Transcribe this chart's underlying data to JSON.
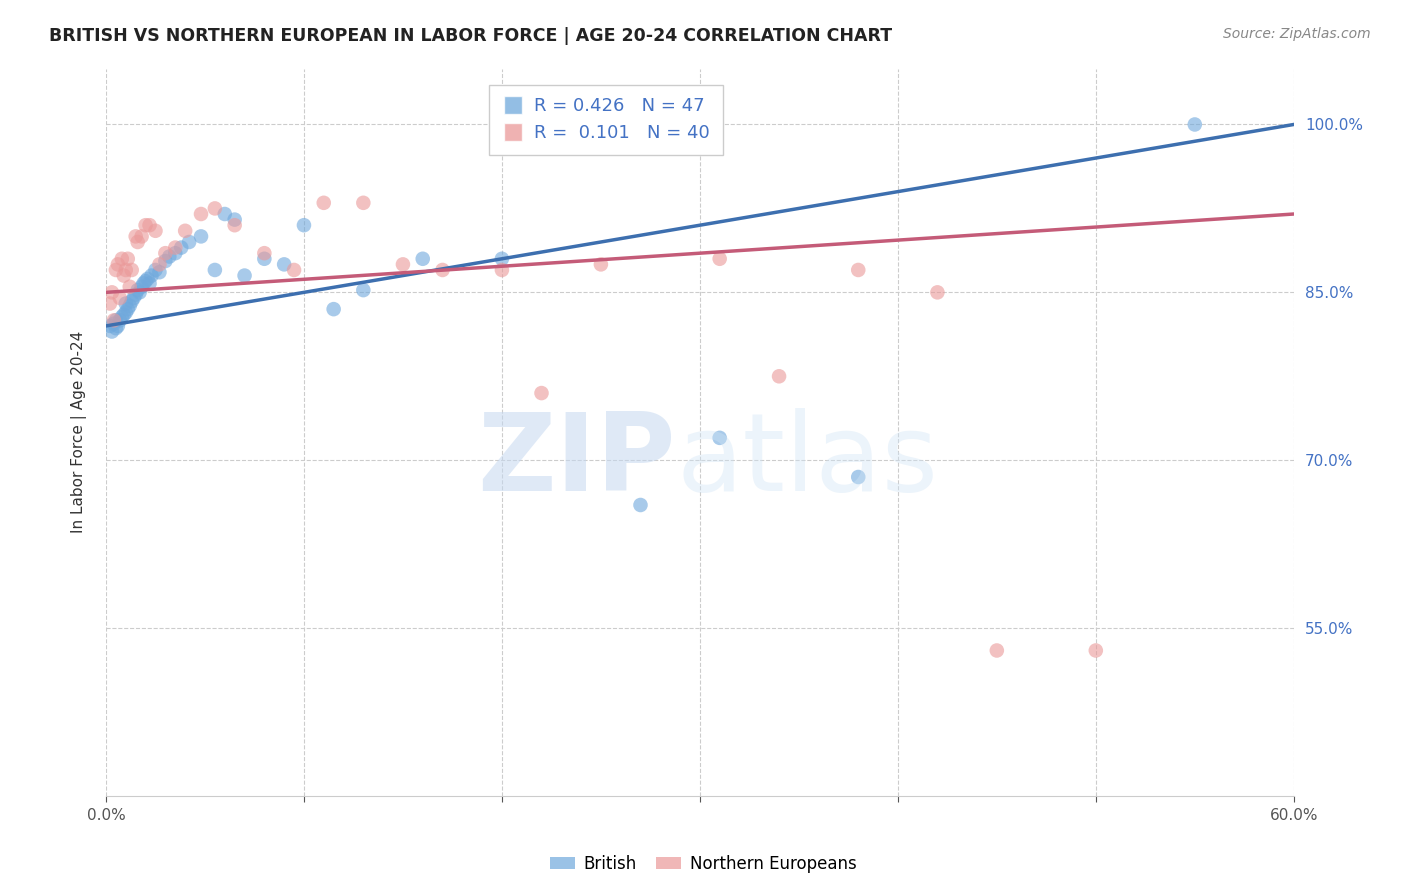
{
  "title": "BRITISH VS NORTHERN EUROPEAN IN LABOR FORCE | AGE 20-24 CORRELATION CHART",
  "source": "Source: ZipAtlas.com",
  "ylabel": "In Labor Force | Age 20-24",
  "xlim": [
    0.0,
    0.6
  ],
  "ylim": [
    0.4,
    1.05
  ],
  "xticks": [
    0.0,
    0.1,
    0.2,
    0.3,
    0.4,
    0.5,
    0.6
  ],
  "yticks": [
    0.55,
    0.7,
    0.85,
    1.0
  ],
  "british_R": 0.426,
  "british_N": 47,
  "northern_R": 0.101,
  "northern_N": 40,
  "british_color": "#6fa8dc",
  "northern_color": "#ea9999",
  "trendline_british_color": "#3d6faf",
  "trendline_northern_color": "#c45b78",
  "grid_color": "#cccccc",
  "background_color": "#ffffff",
  "british_x": [
    0.002,
    0.003,
    0.004,
    0.005,
    0.005,
    0.006,
    0.007,
    0.008,
    0.009,
    0.01,
    0.01,
    0.011,
    0.012,
    0.013,
    0.014,
    0.015,
    0.016,
    0.017,
    0.018,
    0.019,
    0.02,
    0.021,
    0.022,
    0.023,
    0.025,
    0.027,
    0.03,
    0.032,
    0.035,
    0.038,
    0.042,
    0.048,
    0.055,
    0.06,
    0.065,
    0.07,
    0.08,
    0.09,
    0.1,
    0.115,
    0.13,
    0.16,
    0.2,
    0.27,
    0.31,
    0.38,
    0.55
  ],
  "british_y": [
    0.82,
    0.815,
    0.822,
    0.825,
    0.818,
    0.82,
    0.825,
    0.828,
    0.83,
    0.832,
    0.84,
    0.835,
    0.838,
    0.842,
    0.845,
    0.848,
    0.852,
    0.85,
    0.855,
    0.858,
    0.86,
    0.862,
    0.858,
    0.865,
    0.87,
    0.868,
    0.878,
    0.882,
    0.885,
    0.89,
    0.895,
    0.9,
    0.87,
    0.92,
    0.915,
    0.865,
    0.88,
    0.875,
    0.91,
    0.835,
    0.852,
    0.88,
    0.88,
    0.66,
    0.72,
    0.685,
    1.0
  ],
  "northern_x": [
    0.002,
    0.003,
    0.004,
    0.005,
    0.006,
    0.007,
    0.008,
    0.009,
    0.01,
    0.011,
    0.012,
    0.013,
    0.015,
    0.016,
    0.018,
    0.02,
    0.022,
    0.025,
    0.027,
    0.03,
    0.035,
    0.04,
    0.048,
    0.055,
    0.065,
    0.08,
    0.095,
    0.11,
    0.13,
    0.15,
    0.17,
    0.2,
    0.22,
    0.25,
    0.31,
    0.34,
    0.38,
    0.42,
    0.45,
    0.5
  ],
  "northern_y": [
    0.84,
    0.85,
    0.825,
    0.87,
    0.875,
    0.845,
    0.88,
    0.865,
    0.87,
    0.88,
    0.855,
    0.87,
    0.9,
    0.895,
    0.9,
    0.91,
    0.91,
    0.905,
    0.875,
    0.885,
    0.89,
    0.905,
    0.92,
    0.925,
    0.91,
    0.885,
    0.87,
    0.93,
    0.93,
    0.875,
    0.87,
    0.87,
    0.76,
    0.875,
    0.88,
    0.775,
    0.87,
    0.85,
    0.53,
    0.53
  ],
  "trendline_british_x0": 0.0,
  "trendline_british_y0": 0.82,
  "trendline_british_x1": 0.6,
  "trendline_british_y1": 1.0,
  "trendline_northern_x0": 0.0,
  "trendline_northern_y0": 0.85,
  "trendline_northern_x1": 0.6,
  "trendline_northern_y1": 0.92
}
